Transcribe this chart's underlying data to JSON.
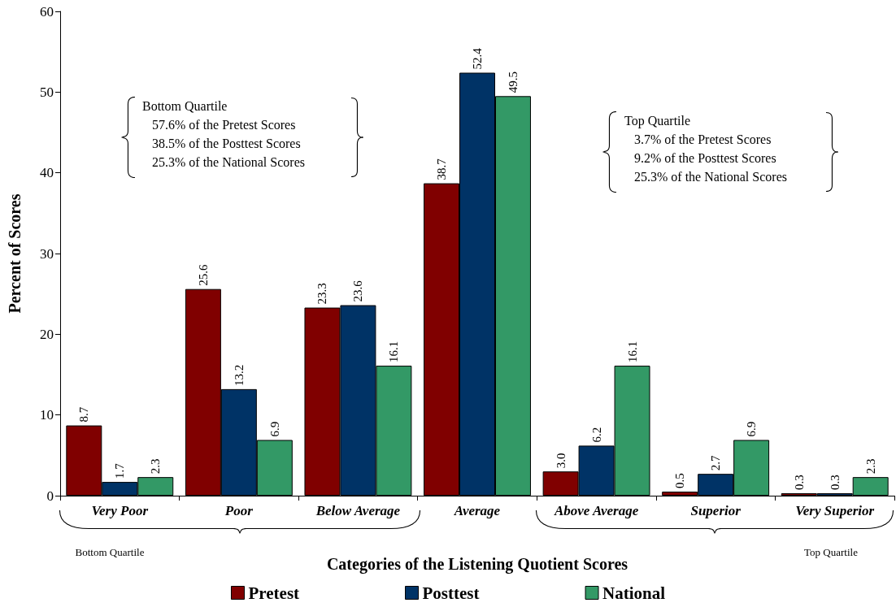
{
  "chart_data": {
    "type": "bar",
    "xlabel": "Categories of the Listening Quotient Scores",
    "ylabel": "Percent of Scores",
    "categories": [
      "Very Poor",
      "Poor",
      "Below Average",
      "Average",
      "Above Average",
      "Superior",
      "Very Superior"
    ],
    "series": [
      {
        "name": "Pretest",
        "color": "#800000",
        "values": [
          8.7,
          25.6,
          23.3,
          38.7,
          3.0,
          0.5,
          0.3
        ],
        "value_labels": [
          "8.7",
          "25.6",
          "23.3",
          "38.7",
          "3.0",
          "0.5",
          "0.3"
        ]
      },
      {
        "name": "Posttest",
        "color": "#003366",
        "values": [
          1.7,
          13.2,
          23.6,
          52.4,
          6.2,
          2.7,
          0.3
        ],
        "value_labels": [
          "1.7",
          "13.2",
          "23.6",
          "52.4",
          "6.2",
          "2.7",
          "0.3"
        ]
      },
      {
        "name": "National",
        "color": "#339966",
        "values": [
          2.3,
          6.9,
          16.1,
          49.5,
          16.1,
          6.9,
          2.3
        ],
        "value_labels": [
          "2.3",
          "6.9",
          "16.1",
          "49.5",
          "16.1",
          "6.9",
          "2.3"
        ]
      }
    ],
    "ylim": [
      0,
      60
    ],
    "yticks": [
      0,
      10,
      20,
      30,
      40,
      50,
      60
    ],
    "grid": false,
    "legend": "bottom",
    "annotations": [
      "Bottom Quartile\n57.6% of the Pretest Scores\n38.5% of the Posttest Scores\n25.3% of the National Scores",
      "Top Quartile\n3.7% of the Pretest Scores\n9.2% of the Posttest Scores\n25.3% of the National Scores",
      "Bottom Quartile",
      "Top Quartile"
    ]
  }
}
